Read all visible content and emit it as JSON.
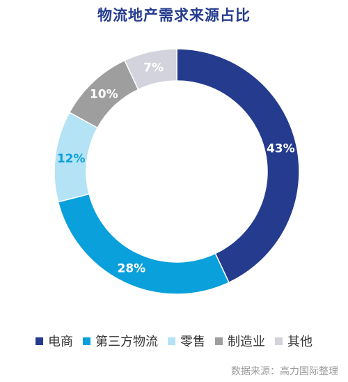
{
  "chart_data": {
    "type": "pie",
    "title": "物流地产需求来源占比",
    "categories": [
      "电商",
      "第三方物流",
      "零售",
      "制造业",
      "其他"
    ],
    "values": [
      43,
      28,
      12,
      10,
      7
    ],
    "labels": [
      "43%",
      "28%",
      "12%",
      "10%",
      "7%"
    ],
    "colors": [
      "#243b8e",
      "#0aa0db",
      "#b3e3f4",
      "#9e9e9e",
      "#d3d3dd"
    ],
    "label_colors": [
      "#ffffff",
      "#ffffff",
      "#0aa0db",
      "#ffffff",
      "#ffffff"
    ],
    "donut": true,
    "start_angle_deg": 0,
    "direction": "clockwise",
    "legend_position": "bottom"
  },
  "source": "数据来源：高力国际整理"
}
